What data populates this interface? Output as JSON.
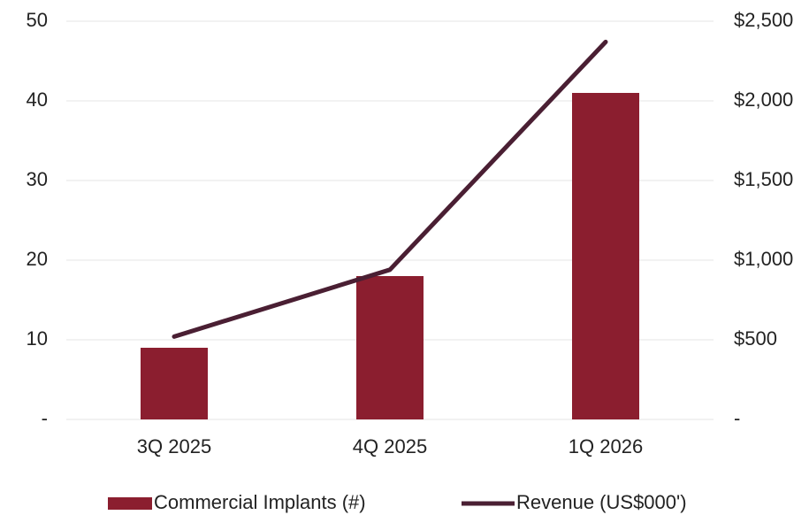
{
  "chart_data": {
    "type": "combo",
    "categories": [
      "3Q 2025",
      "4Q 2025",
      "1Q 2026"
    ],
    "series": [
      {
        "name": "Commercial Implants (#)",
        "type": "bar",
        "color": "#8b1e2f",
        "values": [
          9,
          18,
          41
        ]
      },
      {
        "name": "Revenue (US$000')",
        "type": "line",
        "axis": "y2",
        "color": "#4a1f33",
        "values": [
          520,
          940,
          2370
        ]
      }
    ],
    "ylim": [
      0,
      50
    ],
    "yticks": [
      {
        "value": 0,
        "label": "-"
      },
      10,
      20,
      30,
      40,
      50
    ],
    "y2lim": [
      0,
      2500
    ],
    "y2ticks": [
      {
        "value": 0,
        "label": "-"
      },
      {
        "value": 500,
        "label": "$500"
      },
      {
        "value": 1000,
        "label": "$1,000"
      },
      {
        "value": 1500,
        "label": "$1,500"
      },
      {
        "value": 2000,
        "label": "$2,000"
      },
      {
        "value": 2500,
        "label": "$2,500"
      }
    ],
    "grid": true,
    "legend": "bottom"
  }
}
